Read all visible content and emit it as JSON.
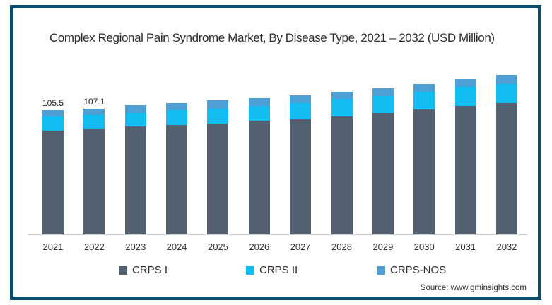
{
  "title": "Complex Regional Pain Syndrome Market, By Disease Type, 2021 – 2032 (USD Million)",
  "source": "Source: www.gminsights.com",
  "colors": {
    "frame": "#0e4d6a",
    "axis": "#cccccc",
    "crps_i": "#546170",
    "crps_ii": "#12bdf2",
    "crps_nos": "#4d9fd6"
  },
  "legend": [
    {
      "label": "CRPS I",
      "color": "#546170"
    },
    {
      "label": "CRPS II",
      "color": "#12bdf2"
    },
    {
      "label": "CRPS-NOS",
      "color": "#4d9fd6"
    }
  ],
  "chart_data": {
    "type": "bar",
    "stacked": true,
    "title": "Complex Regional Pain Syndrome Market, By Disease Type, 2021 – 2032 (USD Million)",
    "unit": "USD Million",
    "grid": false,
    "y_axis_visible": false,
    "legend_position": "bottom",
    "categories": [
      "2021",
      "2022",
      "2023",
      "2024",
      "2025",
      "2026",
      "2027",
      "2028",
      "2029",
      "2030",
      "2031",
      "2032"
    ],
    "series": [
      {
        "name": "CRPS I",
        "color": "#546170",
        "values": [
          88.4,
          89.5,
          92.0,
          93.0,
          94.4,
          96.4,
          98.0,
          100.4,
          103.0,
          106.0,
          109.4,
          111.8
        ]
      },
      {
        "name": "CRPS II",
        "color": "#12bdf2",
        "values": [
          11.6,
          12.0,
          11.4,
          12.4,
          12.6,
          13.0,
          13.8,
          14.6,
          14.4,
          15.4,
          16.0,
          16.0
        ]
      },
      {
        "name": "CRPS-NOS",
        "color": "#4d9fd6",
        "values": [
          5.5,
          5.6,
          6.4,
          6.4,
          6.8,
          6.6,
          6.6,
          6.0,
          7.0,
          6.4,
          6.4,
          7.6
        ]
      }
    ],
    "totals": [
      105.5,
      107.1,
      109.8,
      111.8,
      113.8,
      116.0,
      118.4,
      121.0,
      124.4,
      127.8,
      131.8,
      135.4
    ],
    "data_labels": {
      "2021": "105.5",
      "2022": "107.1"
    }
  }
}
